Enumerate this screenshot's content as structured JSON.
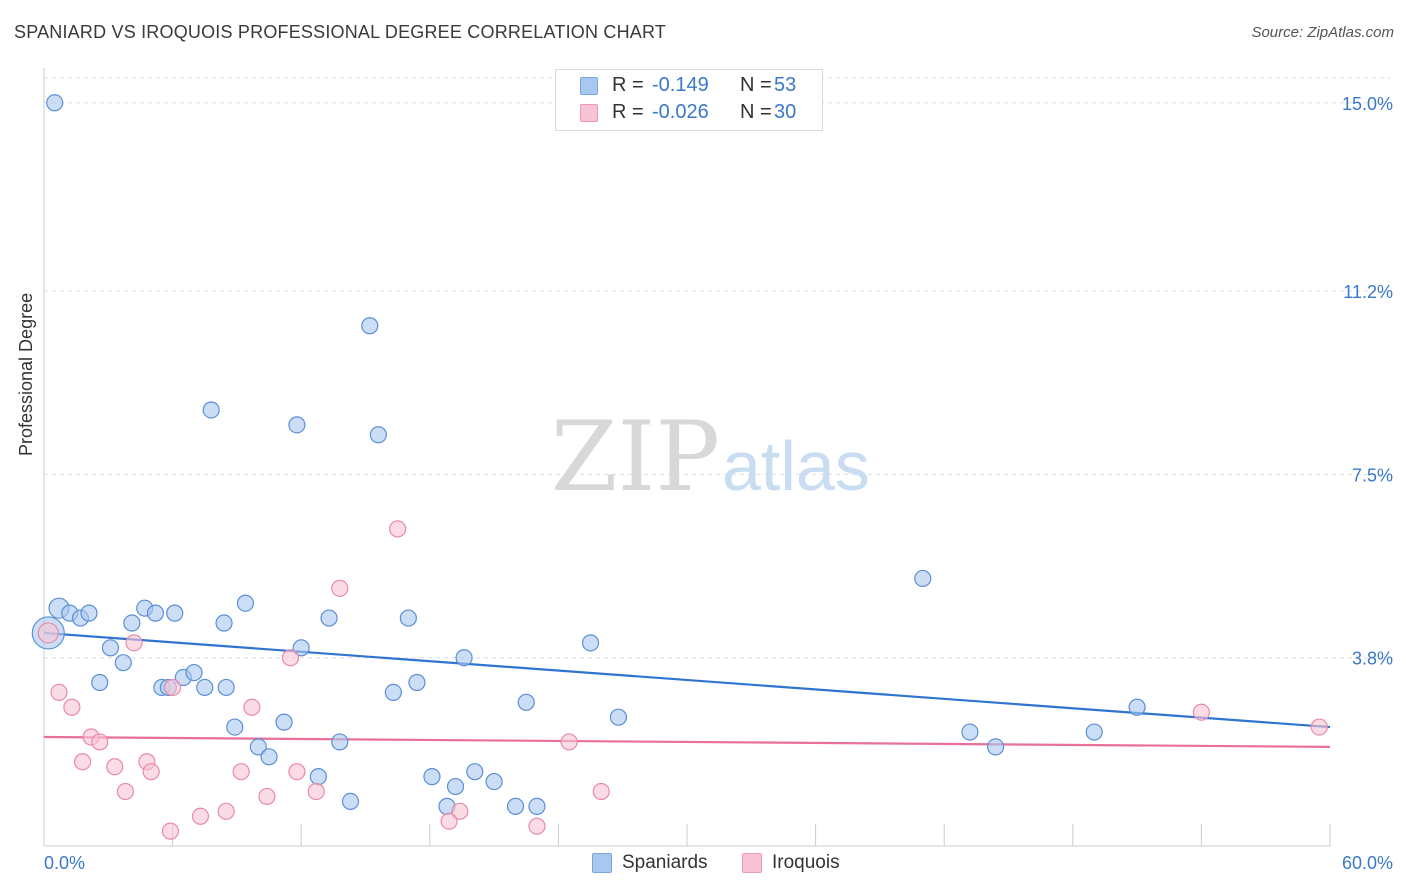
{
  "title": "SPANIARD VS IROQUOIS PROFESSIONAL DEGREE CORRELATION CHART",
  "source": "Source: ZipAtlas.com",
  "watermark": {
    "zip": "ZIP",
    "atlas": "atlas"
  },
  "legend_top": [
    {
      "r_label": "R =",
      "r_value": "-0.149",
      "n_label": "N =",
      "n_value": "53",
      "color": "#a9c8f0",
      "border": "#7aa7e0"
    },
    {
      "r_label": "R =",
      "r_value": "-0.026",
      "n_label": "N =",
      "n_value": "30",
      "color": "#f8c4d4",
      "border": "#ee9ab4"
    }
  ],
  "legend_bottom": [
    {
      "label": "Spaniards",
      "color": "#a9c8f0",
      "border": "#7aa7e0"
    },
    {
      "label": "Iroquois",
      "color": "#f8c4d4",
      "border": "#ee9ab4"
    }
  ],
  "chart_data": {
    "type": "scatter",
    "title": "SPANIARD VS IROQUOIS PROFESSIONAL DEGREE CORRELATION CHART",
    "xlabel": "",
    "ylabel": "Professional Degree",
    "xlim": [
      0,
      60
    ],
    "ylim": [
      0,
      15.5
    ],
    "x_tick_labels": [
      "0.0%",
      "60.0%"
    ],
    "y_ticks": [
      3.8,
      7.5,
      11.2,
      15.0
    ],
    "y_tick_labels": [
      "3.8%",
      "7.5%",
      "11.2%",
      "15.0%"
    ],
    "grid": true,
    "colors": {
      "spaniards_fill": "#a9c8f0",
      "spaniards_stroke": "#5b8fd6",
      "spaniards_line": "#2f74d0",
      "iroquois_fill": "#f8c4d4",
      "iroquois_stroke": "#e98aa8",
      "iroquois_line": "#e8709a",
      "tick_label": "#3a78c9",
      "grid": "#dddddd"
    },
    "series": [
      {
        "name": "Spaniards",
        "trend": {
          "x0": 0,
          "y0": 4.3,
          "x1": 60,
          "y1": 2.4
        },
        "points": [
          [
            0.2,
            4.3,
            16
          ],
          [
            0.7,
            4.8,
            10
          ],
          [
            1.2,
            4.7,
            8
          ],
          [
            1.7,
            4.6,
            8
          ],
          [
            2.1,
            4.7,
            8
          ],
          [
            2.6,
            3.3,
            8
          ],
          [
            3.1,
            4.0,
            8
          ],
          [
            3.7,
            3.7,
            8
          ],
          [
            4.1,
            4.5,
            8
          ],
          [
            4.7,
            4.8,
            8
          ],
          [
            5.2,
            4.7,
            8
          ],
          [
            5.5,
            3.2,
            8
          ],
          [
            6.1,
            4.7,
            8
          ],
          [
            6.5,
            3.4,
            8
          ],
          [
            7.0,
            3.5,
            8
          ],
          [
            7.5,
            3.2,
            8
          ],
          [
            7.8,
            8.8,
            8
          ],
          [
            8.4,
            4.5,
            8
          ],
          [
            8.5,
            3.2,
            8
          ],
          [
            8.9,
            2.4,
            8
          ],
          [
            9.4,
            4.9,
            8
          ],
          [
            10.0,
            2.0,
            8
          ],
          [
            10.5,
            1.8,
            8
          ],
          [
            11.2,
            2.5,
            8
          ],
          [
            11.8,
            8.5,
            8
          ],
          [
            12.0,
            4.0,
            8
          ],
          [
            12.8,
            1.4,
            8
          ],
          [
            13.3,
            4.6,
            8
          ],
          [
            13.8,
            2.1,
            8
          ],
          [
            14.3,
            0.9,
            8
          ],
          [
            15.2,
            10.5,
            8
          ],
          [
            15.6,
            8.3,
            8
          ],
          [
            16.3,
            3.1,
            8
          ],
          [
            17.0,
            4.6,
            8
          ],
          [
            17.4,
            3.3,
            8
          ],
          [
            18.1,
            1.4,
            8
          ],
          [
            18.8,
            0.8,
            8
          ],
          [
            19.2,
            1.2,
            8
          ],
          [
            19.6,
            3.8,
            8
          ],
          [
            20.1,
            1.5,
            8
          ],
          [
            21.0,
            1.3,
            8
          ],
          [
            22.0,
            0.8,
            8
          ],
          [
            22.5,
            2.9,
            8
          ],
          [
            23.0,
            0.8,
            8
          ],
          [
            25.5,
            4.1,
            8
          ],
          [
            26.8,
            2.6,
            8
          ],
          [
            41.0,
            5.4,
            8
          ],
          [
            43.2,
            2.3,
            8
          ],
          [
            44.4,
            2.0,
            8
          ],
          [
            49.0,
            2.3,
            8
          ],
          [
            51.0,
            2.8,
            8
          ],
          [
            0.5,
            15.0,
            8
          ],
          [
            5.8,
            3.2,
            8
          ]
        ]
      },
      {
        "name": "Iroquois",
        "trend": {
          "x0": 0,
          "y0": 2.2,
          "x1": 60,
          "y1": 2.0
        },
        "points": [
          [
            0.2,
            4.3,
            10
          ],
          [
            0.7,
            3.1,
            8
          ],
          [
            1.3,
            2.8,
            8
          ],
          [
            1.8,
            1.7,
            8
          ],
          [
            2.2,
            2.2,
            8
          ],
          [
            2.6,
            2.1,
            8
          ],
          [
            3.3,
            1.6,
            8
          ],
          [
            3.8,
            1.1,
            8
          ],
          [
            4.2,
            4.1,
            8
          ],
          [
            4.8,
            1.7,
            8
          ],
          [
            5.0,
            1.5,
            8
          ],
          [
            5.9,
            0.3,
            8
          ],
          [
            6.0,
            3.2,
            8
          ],
          [
            7.3,
            0.6,
            8
          ],
          [
            8.5,
            0.7,
            8
          ],
          [
            9.2,
            1.5,
            8
          ],
          [
            9.7,
            2.8,
            8
          ],
          [
            10.4,
            1.0,
            8
          ],
          [
            11.5,
            3.8,
            8
          ],
          [
            11.8,
            1.5,
            8
          ],
          [
            12.7,
            1.1,
            8
          ],
          [
            13.8,
            5.2,
            8
          ],
          [
            16.5,
            6.4,
            8
          ],
          [
            18.9,
            0.5,
            8
          ],
          [
            19.4,
            0.7,
            8
          ],
          [
            23.0,
            0.4,
            8
          ],
          [
            24.5,
            2.1,
            8
          ],
          [
            26.0,
            1.1,
            8
          ],
          [
            54.0,
            2.7,
            8
          ],
          [
            59.5,
            2.4,
            8
          ]
        ]
      }
    ]
  }
}
